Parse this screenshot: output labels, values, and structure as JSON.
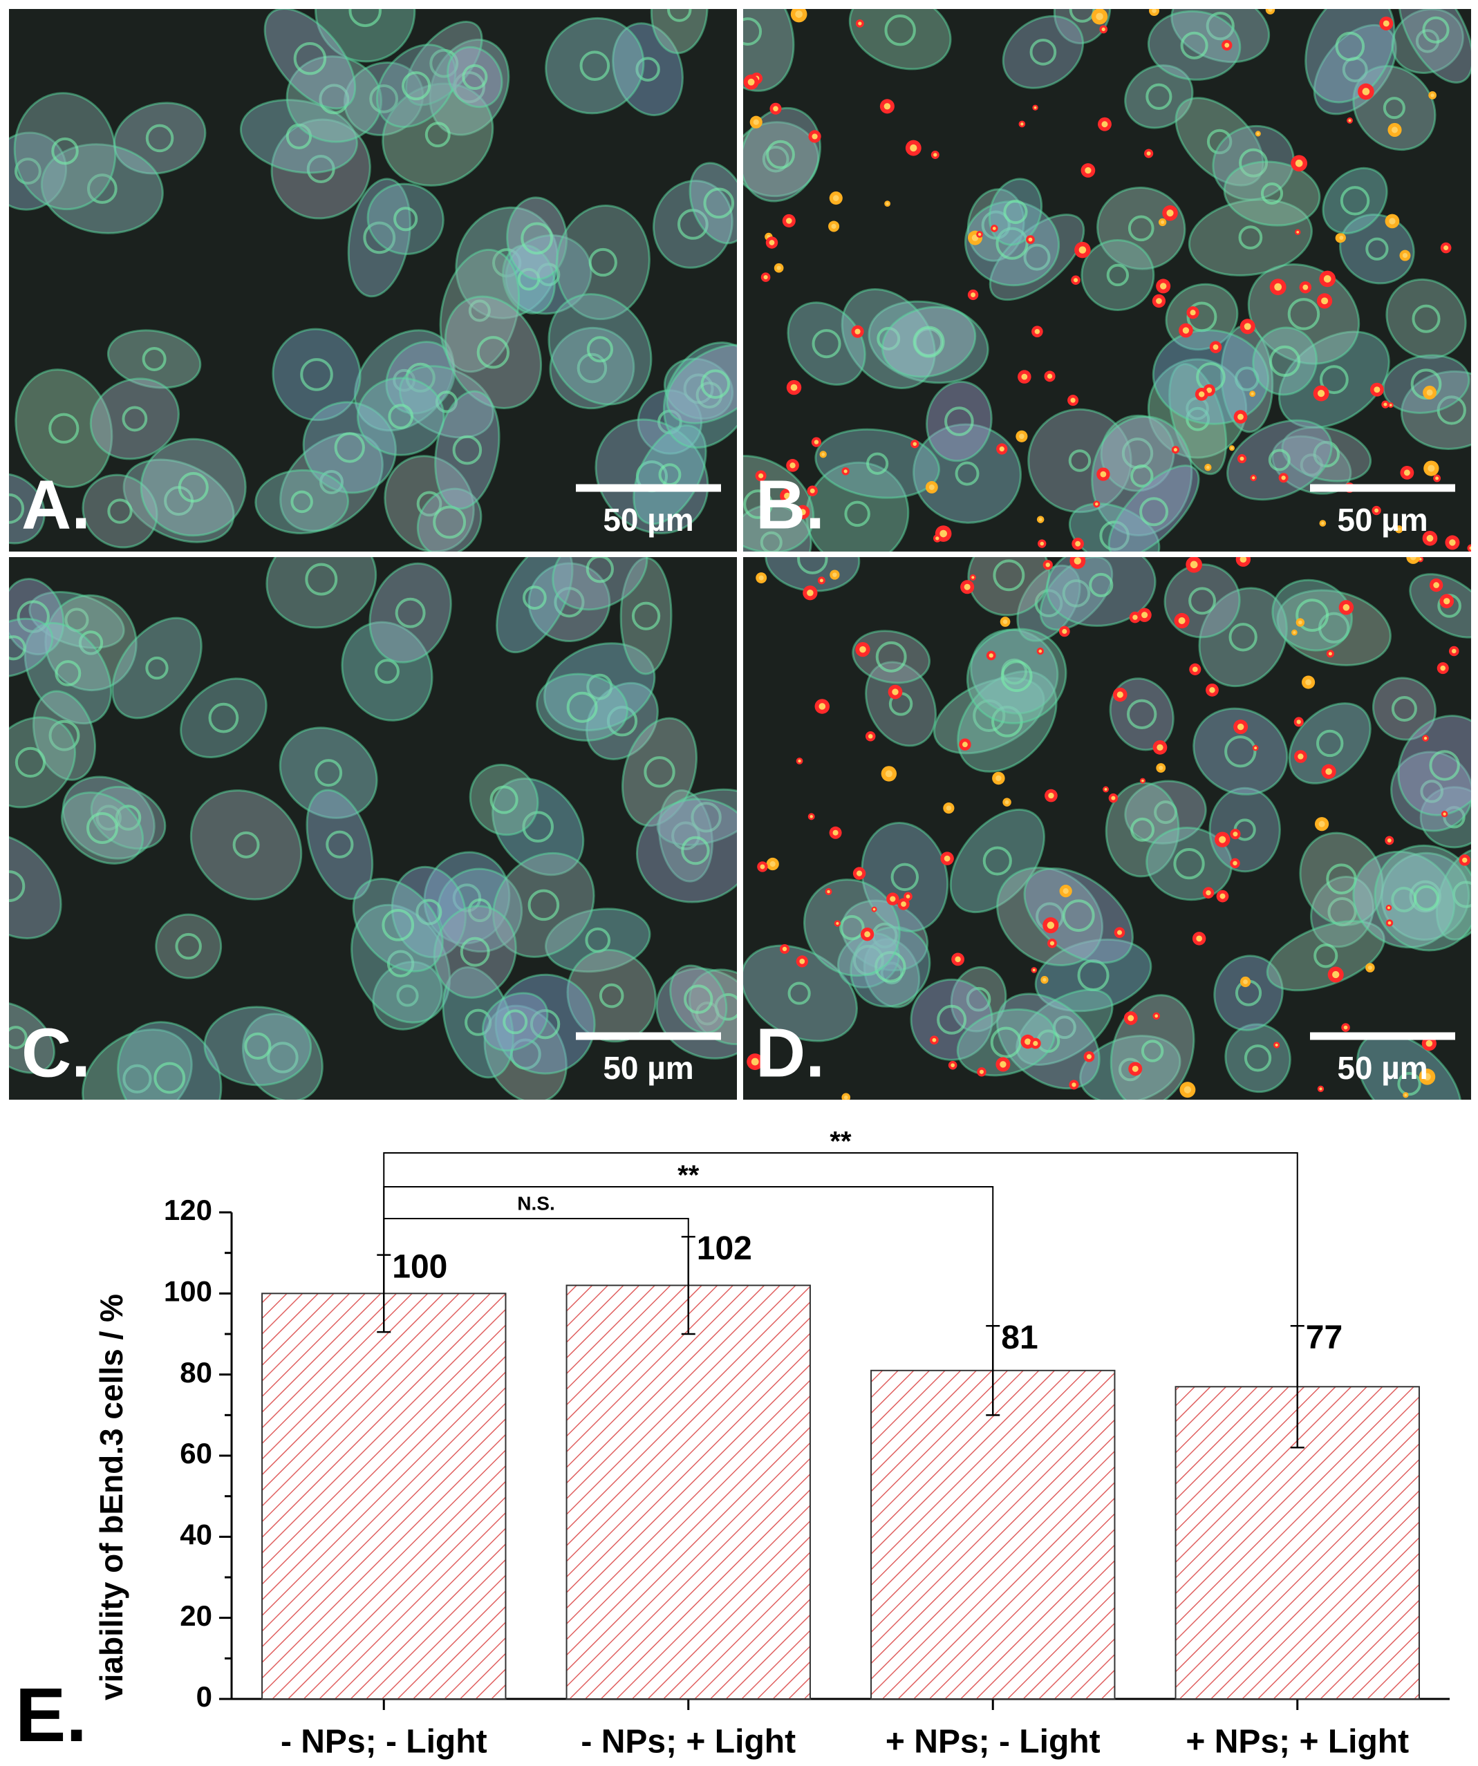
{
  "panels": [
    {
      "label": "A.",
      "scale_bar": "50 µm"
    },
    {
      "label": "B.",
      "scale_bar": "50 µm"
    },
    {
      "label": "C.",
      "scale_bar": "50 µm"
    },
    {
      "label": "D.",
      "scale_bar": "50 µm"
    }
  ],
  "chart_data": {
    "type": "bar",
    "panel_label": "E.",
    "y_label": "viability of bEnd.3 cells  /  %",
    "categories": [
      "- NPs; - Light",
      "- NPs; + Light",
      "+ NPs; - Light",
      "+ NPs; + Light"
    ],
    "values": [
      100,
      102,
      81,
      77
    ],
    "errors": [
      9.5,
      12,
      11,
      15
    ],
    "color": "#e06060",
    "annotations": [
      "N.S.",
      "**",
      "**"
    ],
    "ylim": [
      0,
      120
    ],
    "yticks": [
      0,
      20,
      40,
      60,
      80,
      100,
      120
    ]
  }
}
